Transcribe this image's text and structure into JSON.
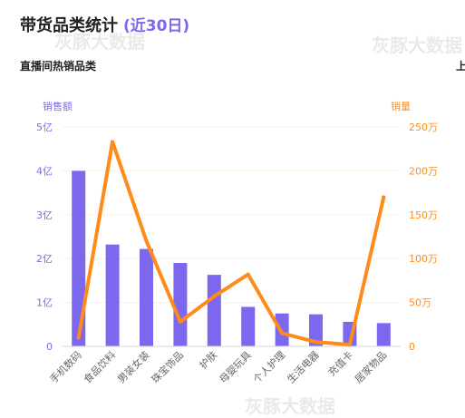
{
  "header": {
    "title": "带货品类统计",
    "period": "(近30日)",
    "subtitle": "直播间热销品类",
    "side_label": "上"
  },
  "watermarks": [
    "灰豚大数据",
    "灰豚大数据",
    "灰豚大数据"
  ],
  "colors": {
    "bar": "#7b68ee",
    "line": "#ff8c1a",
    "left_axis": "#7b68ee",
    "right_axis": "#ff8c1a",
    "grid": "#fdf0e0",
    "category_text": "#666666"
  },
  "chart_data": {
    "type": "bar",
    "categories": [
      "手机数码",
      "食品饮料",
      "男装女装",
      "珠宝饰品",
      "护肤",
      "母婴玩具",
      "个人护理",
      "生活电器",
      "充值卡",
      "居家物品"
    ],
    "series": [
      {
        "name": "销售额",
        "type": "bar",
        "axis": "left",
        "values": [
          4.0,
          2.32,
          2.22,
          1.9,
          1.63,
          0.9,
          0.75,
          0.73,
          0.56,
          0.53
        ]
      },
      {
        "name": "销量",
        "type": "line",
        "axis": "right",
        "values": [
          10,
          233,
          120,
          28,
          57,
          82,
          15,
          5,
          2,
          170
        ]
      }
    ],
    "left_axis": {
      "title": "销售额",
      "min": 0,
      "max": 5,
      "ticks": [
        0,
        1,
        2,
        3,
        4,
        5
      ],
      "tick_labels": [
        "0",
        "1亿",
        "2亿",
        "3亿",
        "4亿",
        "5亿"
      ]
    },
    "right_axis": {
      "title": "销量",
      "min": 0,
      "max": 250,
      "ticks": [
        0,
        50,
        100,
        150,
        200,
        250
      ],
      "tick_labels": [
        "0",
        "50万",
        "100万",
        "150万",
        "200万",
        "250万"
      ]
    },
    "grid": true,
    "legend": "none"
  }
}
